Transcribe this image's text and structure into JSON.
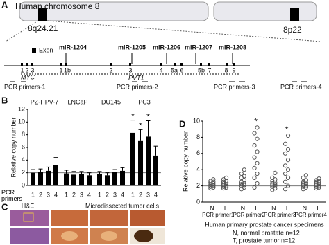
{
  "panel_a": {
    "label": "A",
    "title": "Human chromosome 8",
    "band_left": "8q24.21",
    "band_right": "8p22",
    "exon_legend": "Exon",
    "mirnas": [
      "miR-1204",
      "miR-1205",
      "miR-1206",
      "miR-1207",
      "miR-1208"
    ],
    "exons": [
      "1",
      "2",
      "3",
      "1",
      "1b",
      "2",
      "3",
      "4",
      "5a",
      "6",
      "5b",
      "7",
      "8",
      "9"
    ],
    "genes": [
      "MYC",
      "PVT1"
    ],
    "primers": [
      "PCR primers-1",
      "PCR primers-2",
      "PCR primers-3",
      "PCR primers-4"
    ]
  },
  "panel_c": {
    "label": "C",
    "left_title": "H&E",
    "right_title": "Microdissected tumor cells"
  },
  "chart_data": [
    {
      "type": "bar",
      "label": "B",
      "y_label": "Relative copy number",
      "x_label": "PCR primers",
      "color": "#000000",
      "ylim": [
        0,
        12
      ],
      "yticks": [
        0,
        2,
        4,
        6,
        8,
        10,
        12
      ],
      "reference_line": 2,
      "groups": [
        {
          "name": "PZ-HPV-7",
          "categories": [
            "1",
            "2",
            "3",
            "4"
          ],
          "values": [
            2.0,
            2.1,
            2.3,
            3.2
          ],
          "errors": [
            0.5,
            0.5,
            0.6,
            1.2
          ],
          "annotations": [
            null,
            null,
            null,
            null
          ]
        },
        {
          "name": "LNCaP",
          "categories": [
            "1",
            "2",
            "3",
            "4"
          ],
          "values": [
            1.9,
            1.7,
            1.8,
            1.6
          ],
          "errors": [
            0.5,
            0.5,
            0.4,
            0.4
          ],
          "annotations": [
            null,
            null,
            null,
            null
          ]
        },
        {
          "name": "DU145",
          "categories": [
            "1",
            "2",
            "3",
            "4"
          ],
          "values": [
            1.8,
            1.6,
            2.1,
            2.3
          ],
          "errors": [
            0.4,
            0.4,
            0.4,
            0.5
          ],
          "annotations": [
            null,
            null,
            null,
            null
          ]
        },
        {
          "name": "PC3",
          "categories": [
            "1",
            "2",
            "3",
            "4"
          ],
          "values": [
            8.3,
            7.0,
            7.7,
            4.7
          ],
          "errors": [
            2.0,
            1.8,
            2.5,
            1.5
          ],
          "annotations": [
            "*",
            "*",
            "*",
            null
          ]
        }
      ]
    },
    {
      "type": "scatter",
      "label": "D",
      "y_label": "Relative copy number",
      "x_label": "Human primary prostate cancer specimens",
      "notes": [
        "N, normal prostate n=12",
        "T, prostate tumor n=12"
      ],
      "ylim": [
        0,
        10
      ],
      "yticks": [
        0,
        2,
        4,
        6,
        8,
        10
      ],
      "reference_line": 2,
      "color": "#555555",
      "groups": [
        {
          "name": "PCR primer1",
          "series": [
            {
              "name": "N",
              "values": [
                1.7,
                1.8,
                1.9,
                2.0,
                2.0,
                2.1,
                2.2,
                2.3,
                2.4,
                2.5,
                2.6,
                2.8
              ]
            },
            {
              "name": "T",
              "values": [
                1.7,
                1.8,
                1.9,
                2.0,
                2.1,
                2.2,
                2.3,
                2.4,
                2.5,
                2.6,
                2.8,
                3.0
              ]
            }
          ]
        },
        {
          "name": "PCR primer2",
          "series": [
            {
              "name": "N",
              "values": [
                1.6,
                1.8,
                2.0,
                2.1,
                2.2,
                2.3,
                2.5,
                2.7,
                3.0,
                3.2,
                3.5,
                4.0
              ]
            },
            {
              "name": "T",
              "values": [
                1.8,
                2.3,
                3.0,
                3.5,
                4.2,
                4.8,
                5.5,
                6.2,
                7.0,
                7.8,
                8.5,
                9.2
              ],
              "annotation": "*"
            }
          ]
        },
        {
          "name": "PCR primer3",
          "series": [
            {
              "name": "N",
              "values": [
                1.5,
                1.7,
                1.9,
                2.0,
                2.1,
                2.2,
                2.3,
                2.4,
                2.6,
                2.8,
                3.0,
                3.6
              ]
            },
            {
              "name": "T",
              "values": [
                1.6,
                2.0,
                2.5,
                3.0,
                3.5,
                4.0,
                4.5,
                5.2,
                6.0,
                6.5,
                7.2,
                8.2
              ],
              "annotation": "*"
            }
          ]
        },
        {
          "name": "PCR primer4",
          "series": [
            {
              "name": "N",
              "values": [
                1.6,
                1.8,
                1.9,
                2.0,
                2.1,
                2.2,
                2.3,
                2.4,
                2.5,
                2.7,
                3.0,
                3.3
              ]
            },
            {
              "name": "T",
              "values": [
                1.7,
                1.8,
                1.9,
                2.0,
                2.1,
                2.2,
                2.3,
                2.4,
                2.5,
                2.6,
                2.7,
                2.9
              ]
            }
          ]
        }
      ]
    }
  ]
}
